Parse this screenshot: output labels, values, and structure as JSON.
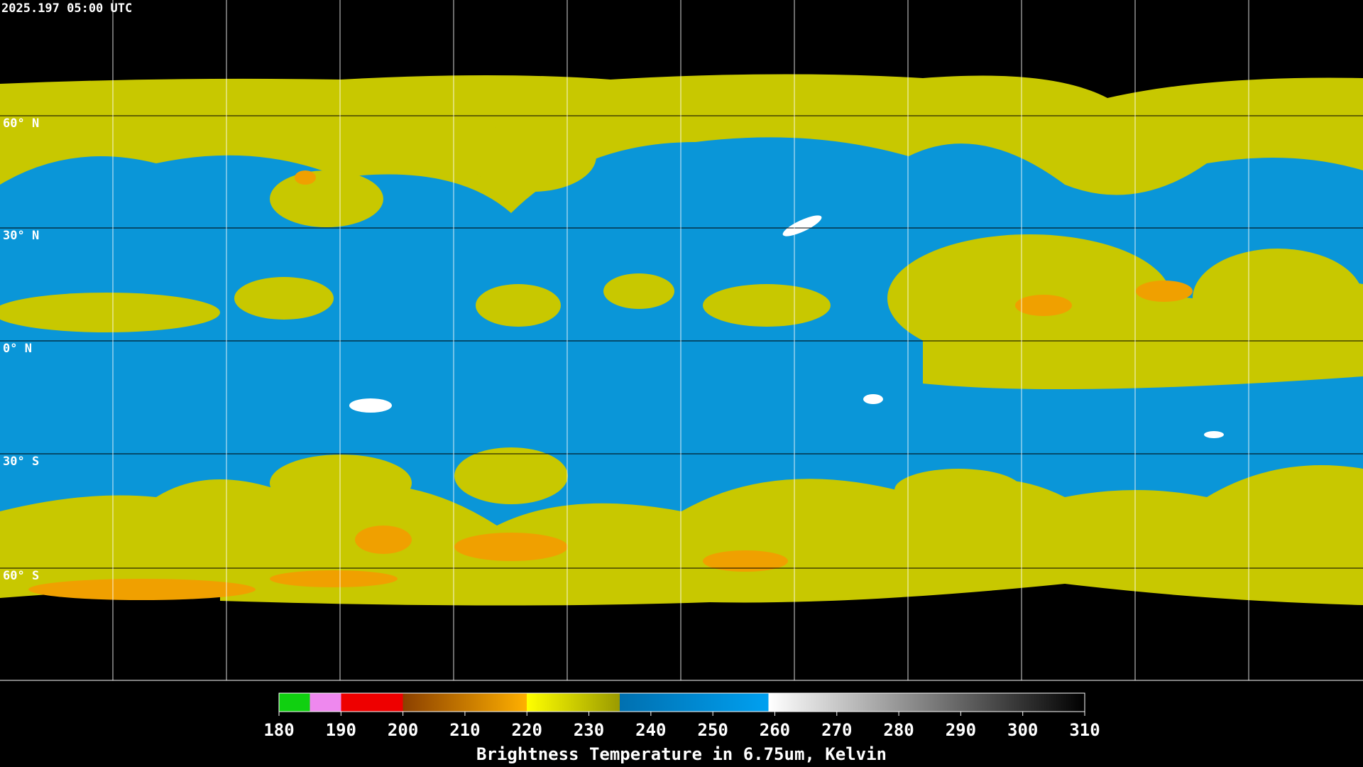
{
  "timestamp": "2025.197 05:00 UTC",
  "latitude_labels": [
    "60° N",
    "30° N",
    "0° N",
    "30° S",
    "60° S"
  ],
  "colorbar": {
    "title": "Brightness Temperature in 6.75um, Kelvin",
    "range": [
      180,
      310
    ],
    "ticks": [
      180,
      190,
      200,
      210,
      220,
      230,
      240,
      250,
      260,
      270,
      280,
      290,
      300,
      310
    ],
    "stops": [
      {
        "value": 180,
        "color": "#10d010"
      },
      {
        "value": 185,
        "color": "#10d010"
      },
      {
        "value": 185,
        "color": "#ee88ee"
      },
      {
        "value": 190,
        "color": "#ee88ee"
      },
      {
        "value": 190,
        "color": "#ee0000"
      },
      {
        "value": 200,
        "color": "#ee0000"
      },
      {
        "value": 200,
        "color": "#8b4000"
      },
      {
        "value": 220,
        "color": "#ffb000"
      },
      {
        "value": 220,
        "color": "#ffff00"
      },
      {
        "value": 235,
        "color": "#9a9a00"
      },
      {
        "value": 235,
        "color": "#0070b0"
      },
      {
        "value": 259,
        "color": "#00a0f0"
      },
      {
        "value": 259,
        "color": "#ffffff"
      },
      {
        "value": 310,
        "color": "#000000"
      }
    ]
  }
}
